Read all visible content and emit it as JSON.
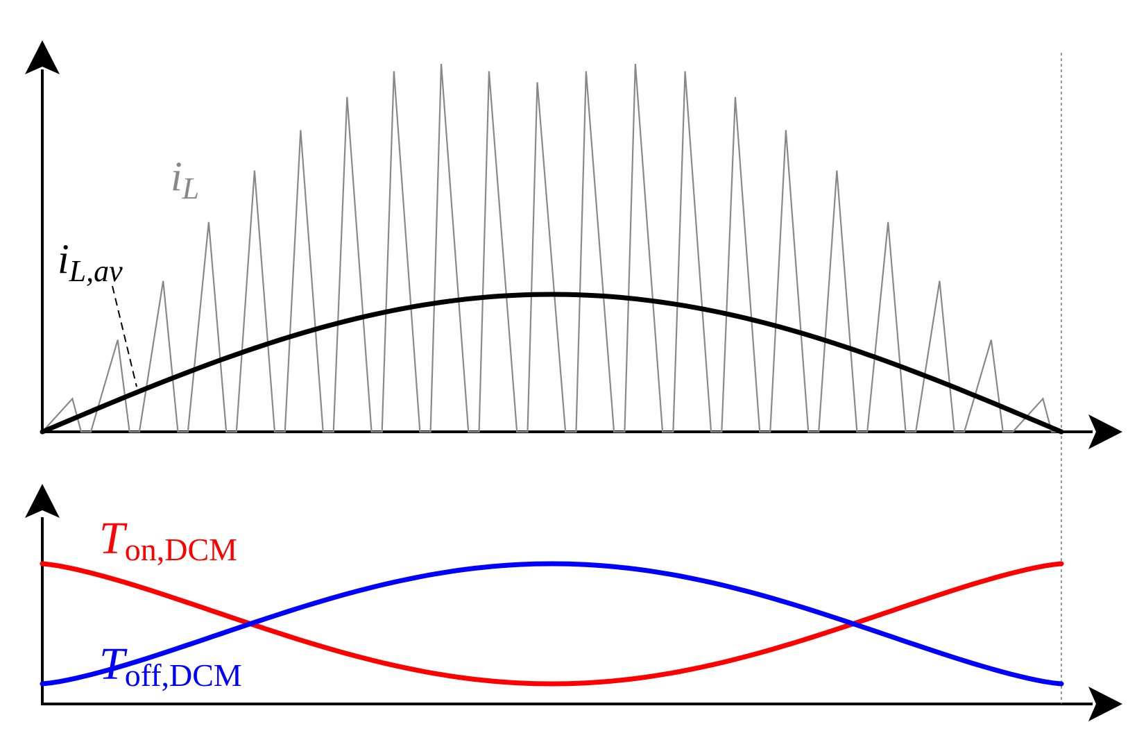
{
  "colors": {
    "axis": "#000000",
    "ripple": "#888888",
    "average": "#000000",
    "t_on": "#ff0000",
    "t_off": "#0000ff",
    "guide": "#777777"
  },
  "labels": {
    "il_var": "i",
    "il_sub": "L",
    "ilav_var": "i",
    "ilav_sub": "L,av",
    "ton_var": "T",
    "ton_sub": "on,DCM",
    "toff_var": "T",
    "toff_sub": "off,DCM"
  },
  "chart_data": [
    {
      "type": "line",
      "description_role": "inductor current waveform",
      "series": [
        {
          "name": "i_L",
          "kind": "triangular ripple",
          "pulses": 21,
          "peaks": [
            0.09,
            0.25,
            0.41,
            0.57,
            0.71,
            0.82,
            0.91,
            0.98,
            1.0,
            0.98,
            0.95,
            0.98,
            1.0,
            0.98,
            0.91,
            0.82,
            0.71,
            0.57,
            0.41,
            0.25,
            0.09
          ]
        },
        {
          "name": "i_L,av",
          "kind": "half-sine average",
          "peak": 0.38
        }
      ],
      "xlim": [
        0,
        1
      ],
      "ylim": [
        0,
        1
      ]
    },
    {
      "type": "line",
      "description_role": "switching times",
      "series": [
        {
          "name": "T_on,DCM",
          "start": 1.0,
          "min": 0.0,
          "end": 1.0
        },
        {
          "name": "T_off,DCM",
          "start": 0.0,
          "max": 1.0,
          "end": 0.0
        }
      ],
      "xlim": [
        0,
        1
      ],
      "ylim": [
        0,
        1
      ]
    }
  ]
}
